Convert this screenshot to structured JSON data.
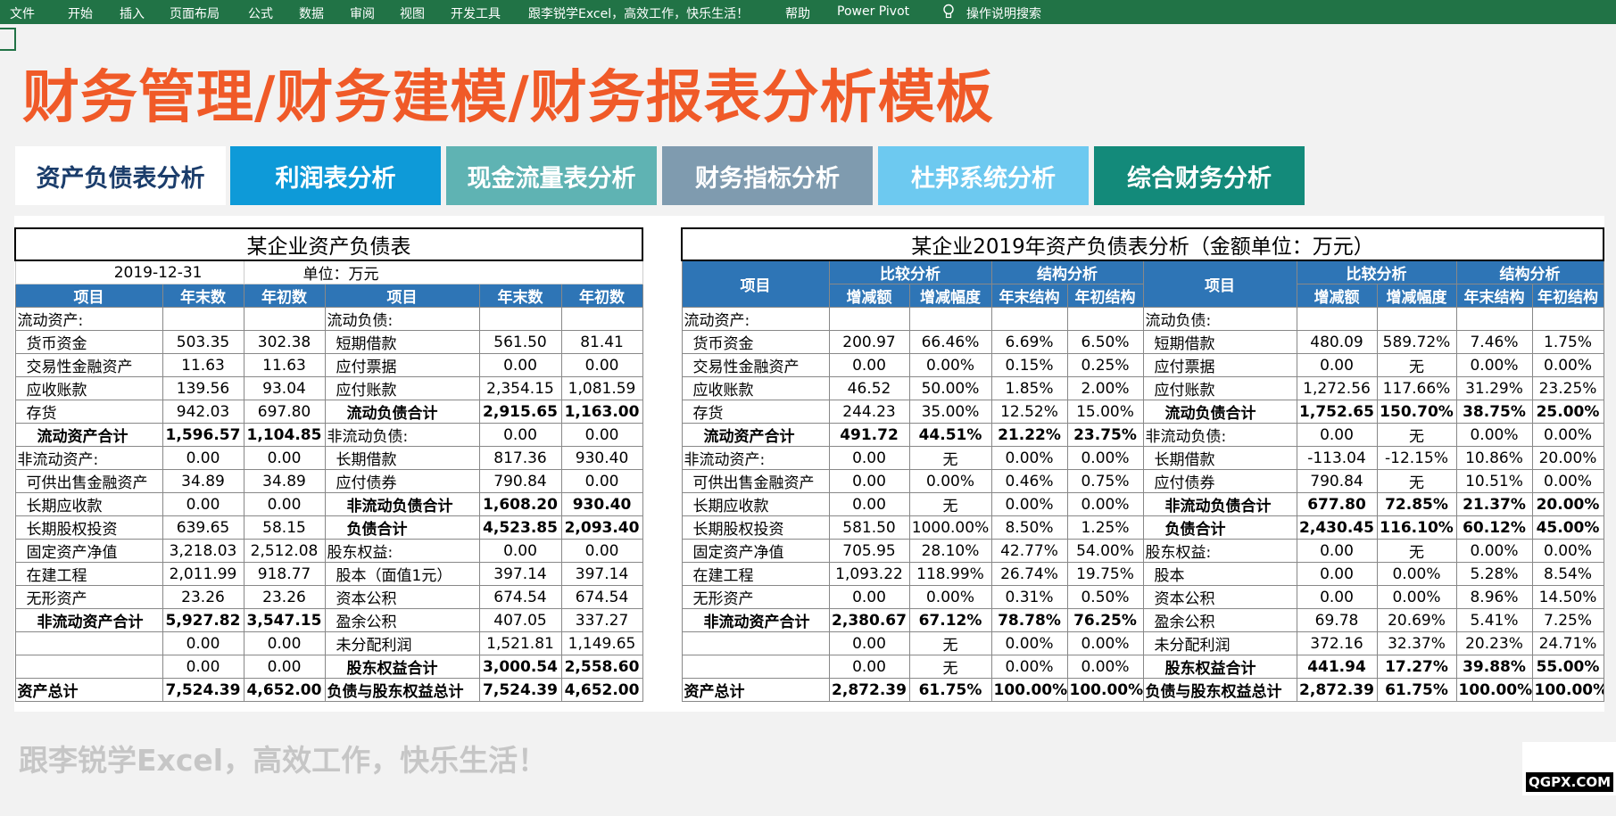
{
  "ribbon": {
    "items": [
      "文件",
      "开始",
      "插入",
      "页面布局",
      "公式",
      "数据",
      "审阅",
      "视图",
      "开发工具",
      "跟李锐学Excel，高效工作，快乐生活！",
      "帮助",
      "Power Pivot"
    ],
    "search": "操作说明搜索"
  },
  "title": "财务管理/财务建模/财务报表分析模板",
  "tabs": [
    {
      "label": "资产负债表分析",
      "color": "#ffffff"
    },
    {
      "label": "利润表分析",
      "color": "#0e9ad8"
    },
    {
      "label": "现金流量表分析",
      "color": "#5fb3b3"
    },
    {
      "label": "财务指标分析",
      "color": "#7f9baf"
    },
    {
      "label": "杜邦系统分析",
      "color": "#6dc9f0"
    },
    {
      "label": "综合财务分析",
      "color": "#138a7a"
    }
  ],
  "left_table": {
    "title": "某企业资产负债表",
    "date": "2019-12-31",
    "unit": "单位：万元",
    "headers": [
      "项目",
      "年末数",
      "年初数",
      "项目",
      "年末数",
      "年初数"
    ],
    "rows": [
      [
        "流动资产:",
        "",
        "",
        "流动负债:",
        "",
        ""
      ],
      [
        "货币资金",
        "503.35",
        "302.38",
        "短期借款",
        "561.50",
        "81.41"
      ],
      [
        "交易性金融资产",
        "11.63",
        "11.63",
        "应付票据",
        "0.00",
        "0.00"
      ],
      [
        "应收账款",
        "139.56",
        "93.04",
        "应付账款",
        "2,354.15",
        "1,081.59"
      ],
      [
        "存货",
        "942.03",
        "697.80",
        "流动负债合计",
        "2,915.65",
        "1,163.00"
      ],
      [
        "流动资产合计",
        "1,596.57",
        "1,104.85",
        "非流动负债:",
        "0.00",
        "0.00"
      ],
      [
        "非流动资产:",
        "0.00",
        "0.00",
        "长期借款",
        "817.36",
        "930.40"
      ],
      [
        "可供出售金融资产",
        "34.89",
        "34.89",
        "应付债券",
        "790.84",
        "0.00"
      ],
      [
        "长期应收款",
        "0.00",
        "0.00",
        "非流动负债合计",
        "1,608.20",
        "930.40"
      ],
      [
        "长期股权投资",
        "639.65",
        "58.15",
        "负债合计",
        "4,523.85",
        "2,093.40"
      ],
      [
        "固定资产净值",
        "3,218.03",
        "2,512.08",
        "股东权益:",
        "0.00",
        "0.00"
      ],
      [
        "在建工程",
        "2,011.99",
        "918.77",
        "股本（面值1元）",
        "397.14",
        "397.14"
      ],
      [
        "无形资产",
        "23.26",
        "23.26",
        "资本公积",
        "674.54",
        "674.54"
      ],
      [
        "非流动资产合计",
        "5,927.82",
        "3,547.15",
        "盈余公积",
        "407.05",
        "337.27"
      ],
      [
        "",
        "0.00",
        "0.00",
        "未分配利润",
        "1,521.81",
        "1,149.65"
      ],
      [
        "",
        "0.00",
        "0.00",
        "股东权益合计",
        "3,000.54",
        "2,558.60"
      ],
      [
        "资产总计",
        "7,524.39",
        "4,652.00",
        "负债与股东权益总计",
        "7,524.39",
        "4,652.00"
      ]
    ]
  },
  "right_table": {
    "title": "某企业2019年资产负债表分析（金额单位：万元）",
    "group_headers": [
      "项目",
      "比较分析",
      "结构分析",
      "项目",
      "比较分析",
      "结构分析"
    ],
    "sub_headers": [
      "增减额",
      "增减幅度",
      "年末结构",
      "年初结构",
      "增减额",
      "增减幅度",
      "年末结构",
      "年初结构"
    ],
    "rows": [
      [
        "流动资产:",
        "",
        "",
        "",
        "",
        "流动负债:",
        "",
        "",
        "",
        ""
      ],
      [
        "货币资金",
        "200.97",
        "66.46%",
        "6.69%",
        "6.50%",
        "短期借款",
        "480.09",
        "589.72%",
        "7.46%",
        "1.75%"
      ],
      [
        "交易性金融资产",
        "0.00",
        "0.00%",
        "0.15%",
        "0.25%",
        "应付票据",
        "0.00",
        "无",
        "0.00%",
        "0.00%"
      ],
      [
        "应收账款",
        "46.52",
        "50.00%",
        "1.85%",
        "2.00%",
        "应付账款",
        "1,272.56",
        "117.66%",
        "31.29%",
        "23.25%"
      ],
      [
        "存货",
        "244.23",
        "35.00%",
        "12.52%",
        "15.00%",
        "流动负债合计",
        "1,752.65",
        "150.70%",
        "38.75%",
        "25.00%"
      ],
      [
        "流动资产合计",
        "491.72",
        "44.51%",
        "21.22%",
        "23.75%",
        "非流动负债:",
        "0.00",
        "无",
        "0.00%",
        "0.00%"
      ],
      [
        "非流动资产:",
        "0.00",
        "无",
        "0.00%",
        "0.00%",
        "长期借款",
        "-113.04",
        "-12.15%",
        "10.86%",
        "20.00%"
      ],
      [
        "可供出售金融资产",
        "0.00",
        "0.00%",
        "0.46%",
        "0.75%",
        "应付债券",
        "790.84",
        "无",
        "10.51%",
        "0.00%"
      ],
      [
        "长期应收款",
        "0.00",
        "无",
        "0.00%",
        "0.00%",
        "非流动负债合计",
        "677.80",
        "72.85%",
        "21.37%",
        "20.00%"
      ],
      [
        "长期股权投资",
        "581.50",
        "1000.00%",
        "8.50%",
        "1.25%",
        "负债合计",
        "2,430.45",
        "116.10%",
        "60.12%",
        "45.00%"
      ],
      [
        "固定资产净值",
        "705.95",
        "28.10%",
        "42.77%",
        "54.00%",
        "股东权益:",
        "0.00",
        "无",
        "0.00%",
        "0.00%"
      ],
      [
        "在建工程",
        "1,093.22",
        "118.99%",
        "26.74%",
        "19.75%",
        "股本",
        "0.00",
        "0.00%",
        "5.28%",
        "8.54%"
      ],
      [
        "无形资产",
        "0.00",
        "0.00%",
        "0.31%",
        "0.50%",
        "资本公积",
        "0.00",
        "0.00%",
        "8.96%",
        "14.50%"
      ],
      [
        "非流动资产合计",
        "2,380.67",
        "67.12%",
        "78.78%",
        "76.25%",
        "盈余公积",
        "69.78",
        "20.69%",
        "5.41%",
        "7.25%"
      ],
      [
        "",
        "0.00",
        "无",
        "0.00%",
        "0.00%",
        "未分配利润",
        "372.16",
        "32.37%",
        "20.23%",
        "24.71%"
      ],
      [
        "",
        "0.00",
        "无",
        "0.00%",
        "0.00%",
        "股东权益合计",
        "441.94",
        "17.27%",
        "39.88%",
        "55.00%"
      ],
      [
        "资产总计",
        "2,872.39",
        "61.75%",
        "100.00%",
        "100.00%",
        "负债与股东权益总计",
        "2,872.39",
        "61.75%",
        "100.00%",
        "100.00%"
      ]
    ]
  },
  "footer": "跟李锐学Excel，高效工作，快乐生活！",
  "watermark": "QGPX.COM"
}
